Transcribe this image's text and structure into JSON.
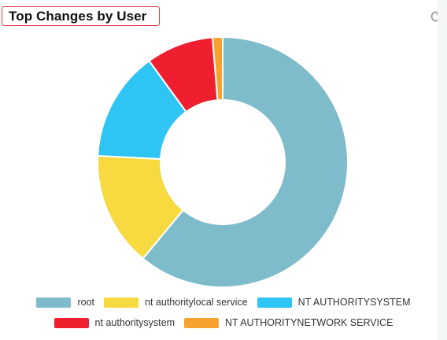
{
  "widget": {
    "title": "Top Changes by User",
    "refresh_icon": "refresh-icon"
  },
  "chart_data": {
    "type": "pie",
    "subtype": "donut",
    "title": "Top Changes by User",
    "legend_position": "bottom",
    "series": [
      {
        "name": "root",
        "value": 61.0,
        "color": "#7fbccb"
      },
      {
        "name": "nt authoritylocal service",
        "value": 14.8,
        "color": "#f7d940"
      },
      {
        "name": "NT AUTHORITYSYSTEM",
        "value": 14.2,
        "color": "#2ec5f4"
      },
      {
        "name": "nt authoritysystem",
        "value": 8.7,
        "color": "#f01f30"
      },
      {
        "name": "NT AUTHORITYNETWORK SERVICE",
        "value": 1.3,
        "color": "#f7a12f"
      }
    ]
  },
  "legend": {
    "row1": [
      {
        "label": "root",
        "color": "#7fbccb"
      },
      {
        "label": "nt authoritylocal service",
        "color": "#f7d940"
      },
      {
        "label": "NT AUTHORITYSYSTEM",
        "color": "#2ec5f4"
      }
    ],
    "row2": [
      {
        "label": "nt authoritysystem",
        "color": "#f01f30"
      },
      {
        "label": "NT AUTHORITYNETWORK SERVICE",
        "color": "#f7a12f"
      }
    ]
  }
}
